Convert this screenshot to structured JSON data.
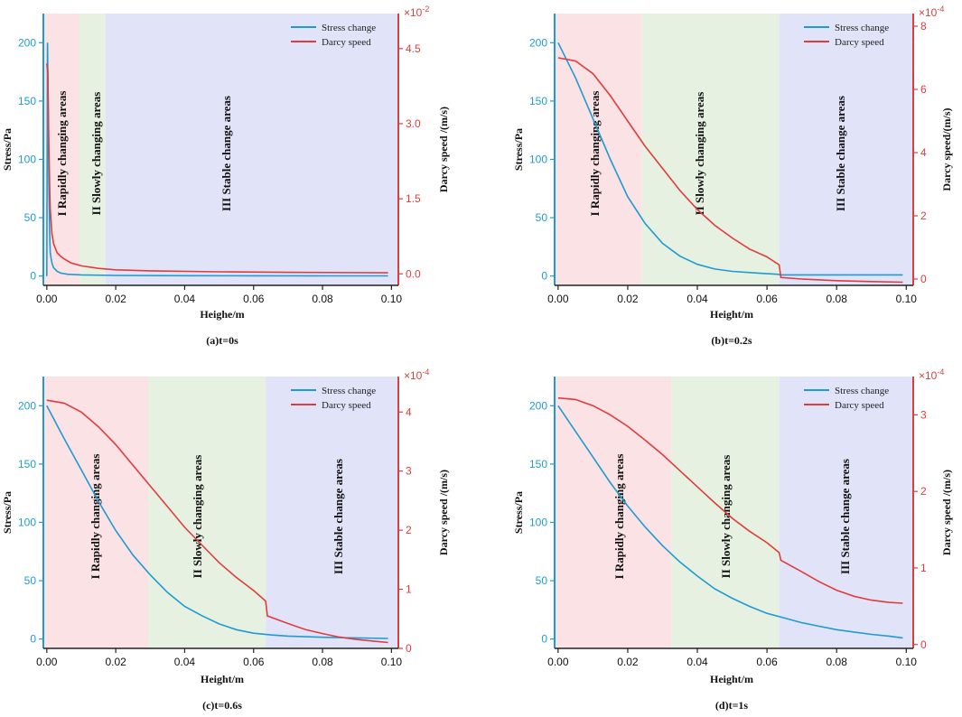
{
  "colors": {
    "stress": "#1f9bd1",
    "darcy": "#e03c3c",
    "region1": "#fbe2e4",
    "region2": "#e6f1e2",
    "region3": "#e1e4f8",
    "axis": "#222222"
  },
  "shared": {
    "xlabel_a": "Heighe/m",
    "xlabel": "Height/m",
    "ylabel_left": "Stress/Pa",
    "ylabel_right_a": "Darcy speed /(m/s)",
    "ylabel_right_b": "Darcy speed/(m/s)",
    "ylabel_right_cd": "Darcy speed /(m/s)",
    "legend_stress": "Stress change",
    "legend_darcy": "Darcy speed",
    "region1_label": "I  Rapidly changing areas",
    "region2_label_a": "II  Slowly changing areas",
    "region2_label": "II Slowly changing areas",
    "region3_label": "III Stable change areas"
  },
  "chart_data": [
    {
      "type": "line",
      "title": "(a)t=0s",
      "xlabel": "Heighe/m",
      "ylabel": "Stress/Pa",
      "ylabel_right": "Darcy speed /(m/s)",
      "xlim": [
        -0.001,
        0.102
      ],
      "xticks": [
        "0.00",
        "0.02",
        "0.04",
        "0.06",
        "0.08",
        "0.10"
      ],
      "xtick_values": [
        0,
        0.02,
        0.04,
        0.06,
        0.08,
        0.1
      ],
      "ylim_left": [
        -8,
        225
      ],
      "yticks_left": [
        "0",
        "50",
        "100",
        "150",
        "200"
      ],
      "ytick_left_values": [
        0,
        50,
        100,
        150,
        200
      ],
      "ylim_right": [
        -0.23,
        5.2
      ],
      "yticks_right": [
        "0.0",
        "1.5",
        "3.0",
        "4.5"
      ],
      "ytick_right_values": [
        0,
        1.5,
        3.0,
        4.5
      ],
      "right_multiplier": "×10",
      "right_exponent": "-2",
      "regions": [
        {
          "label": "I  Rapidly changing areas",
          "x0": -0.001,
          "x1": 0.0095
        },
        {
          "label": "II  Slowly changing areas",
          "x0": 0.0095,
          "x1": 0.017
        },
        {
          "label": "III Stable change areas",
          "x0": 0.017,
          "x1": 0.102
        }
      ],
      "series": [
        {
          "name": "Stress change",
          "axis": "left",
          "x": [
            0,
            0.0002,
            0.0004,
            0.0006,
            0.0008,
            0.001,
            0.0013,
            0.0016,
            0.002,
            0.003,
            0.004,
            0.006,
            0.01,
            0.02,
            0.04,
            0.06,
            0.08,
            0.099
          ],
          "y": [
            0,
            200,
            150,
            80,
            40,
            20,
            14,
            10,
            7,
            4,
            2.5,
            1.5,
            1,
            0.5,
            0.3,
            0.2,
            0.1,
            0.1
          ]
        },
        {
          "name": "Darcy speed",
          "axis": "right",
          "x": [
            0,
            0.0003,
            0.0005,
            0.0008,
            0.001,
            0.0015,
            0.002,
            0.003,
            0.004,
            0.005,
            0.007,
            0.01,
            0.015,
            0.02,
            0.03,
            0.05,
            0.07,
            0.099
          ],
          "y": [
            4.2,
            4.0,
            3.0,
            1.8,
            1.3,
            0.8,
            0.6,
            0.42,
            0.35,
            0.3,
            0.22,
            0.16,
            0.11,
            0.08,
            0.06,
            0.04,
            0.03,
            0.02
          ]
        }
      ]
    },
    {
      "type": "line",
      "title": "(b)t=0.2s",
      "xlabel": "Height/m",
      "ylabel": "Stress/Pa",
      "ylabel_right": "Darcy speed/(m/s)",
      "xlim": [
        -0.001,
        0.102
      ],
      "xticks": [
        "0.00",
        "0.02",
        "0.04",
        "0.06",
        "0.08",
        "0.10"
      ],
      "xtick_values": [
        0,
        0.02,
        0.04,
        0.06,
        0.08,
        0.1
      ],
      "ylim_left": [
        -8,
        225
      ],
      "yticks_left": [
        "0",
        "50",
        "100",
        "150",
        "200"
      ],
      "ytick_left_values": [
        0,
        50,
        100,
        150,
        200
      ],
      "ylim_right": [
        -0.2,
        8.4
      ],
      "yticks_right": [
        "0",
        "2",
        "4",
        "6",
        "8"
      ],
      "ytick_right_values": [
        0,
        2,
        4,
        6,
        8
      ],
      "right_multiplier": "×10",
      "right_exponent": "-4",
      "regions": [
        {
          "label": "I  Rapidly changing areas",
          "x0": -0.001,
          "x1": 0.024
        },
        {
          "label": "II Slowly changing areas",
          "x0": 0.024,
          "x1": 0.0635
        },
        {
          "label": "III Stable change areas",
          "x0": 0.0635,
          "x1": 0.102
        }
      ],
      "series": [
        {
          "name": "Stress change",
          "axis": "left",
          "x": [
            0,
            0.005,
            0.01,
            0.015,
            0.02,
            0.025,
            0.03,
            0.035,
            0.04,
            0.045,
            0.05,
            0.055,
            0.06,
            0.063,
            0.064,
            0.07,
            0.08,
            0.09,
            0.099
          ],
          "y": [
            200,
            170,
            135,
            100,
            68,
            45,
            28,
            17,
            10,
            6,
            4,
            3,
            2,
            1.5,
            1,
            1,
            1,
            1,
            1
          ]
        },
        {
          "name": "Darcy speed",
          "axis": "right",
          "x": [
            0,
            0.005,
            0.01,
            0.015,
            0.02,
            0.025,
            0.03,
            0.035,
            0.04,
            0.045,
            0.05,
            0.055,
            0.06,
            0.0635,
            0.064,
            0.07,
            0.08,
            0.09,
            0.099
          ],
          "y": [
            7.0,
            6.9,
            6.5,
            5.8,
            5.0,
            4.2,
            3.5,
            2.8,
            2.2,
            1.7,
            1.3,
            0.95,
            0.7,
            0.45,
            0.05,
            0.0,
            -0.05,
            -0.08,
            -0.1
          ]
        }
      ]
    },
    {
      "type": "line",
      "title": "(c)t=0.6s",
      "xlabel": "Height/m",
      "ylabel": "Stress/Pa",
      "ylabel_right": "Darcy speed /(m/s)",
      "xlim": [
        -0.001,
        0.102
      ],
      "xticks": [
        "0.00",
        "0.02",
        "0.04",
        "0.06",
        "0.08",
        "0.10"
      ],
      "xtick_values": [
        0,
        0.02,
        0.04,
        0.06,
        0.08,
        0.1
      ],
      "ylim_left": [
        -8,
        225
      ],
      "yticks_left": [
        "0",
        "50",
        "100",
        "150",
        "200"
      ],
      "ytick_left_values": [
        0,
        50,
        100,
        150,
        200
      ],
      "ylim_right": [
        0.0,
        4.6
      ],
      "yticks_right": [
        "0",
        "1",
        "2",
        "3",
        "4"
      ],
      "ytick_right_values": [
        0,
        1,
        2,
        3,
        4
      ],
      "right_multiplier": "×10",
      "right_exponent": "-4",
      "regions": [
        {
          "label": "I  Rapidly changing areas",
          "x0": -0.001,
          "x1": 0.0295
        },
        {
          "label": "II Slowly changing areas",
          "x0": 0.0295,
          "x1": 0.0635
        },
        {
          "label": "III Stable change areas",
          "x0": 0.0635,
          "x1": 0.102
        }
      ],
      "series": [
        {
          "name": "Stress change",
          "axis": "left",
          "x": [
            0,
            0.005,
            0.01,
            0.015,
            0.02,
            0.025,
            0.03,
            0.035,
            0.04,
            0.045,
            0.05,
            0.055,
            0.06,
            0.065,
            0.07,
            0.08,
            0.09,
            0.099
          ],
          "y": [
            200,
            172,
            145,
            118,
            93,
            72,
            55,
            40,
            28,
            20,
            13,
            8,
            5,
            3.5,
            2.5,
            1.5,
            1,
            0.5
          ]
        },
        {
          "name": "Darcy speed",
          "axis": "right",
          "x": [
            0,
            0.005,
            0.01,
            0.015,
            0.02,
            0.025,
            0.03,
            0.035,
            0.04,
            0.045,
            0.05,
            0.055,
            0.06,
            0.0635,
            0.064,
            0.07,
            0.075,
            0.08,
            0.085,
            0.09,
            0.095,
            0.099
          ],
          "y": [
            4.2,
            4.15,
            4.0,
            3.75,
            3.45,
            3.1,
            2.75,
            2.4,
            2.05,
            1.75,
            1.45,
            1.2,
            0.98,
            0.8,
            0.55,
            0.42,
            0.32,
            0.25,
            0.19,
            0.15,
            0.12,
            0.1
          ]
        }
      ]
    },
    {
      "type": "line",
      "title": "(d)t=1s",
      "xlabel": "Height/m",
      "ylabel": "Stress/Pa",
      "ylabel_right": "Darcy speed /(m/s)",
      "xlim": [
        -0.001,
        0.102
      ],
      "xticks": [
        "0.00",
        "0.02",
        "0.04",
        "0.06",
        "0.08",
        "0.10"
      ],
      "xtick_values": [
        0,
        0.02,
        0.04,
        0.06,
        0.08,
        0.1
      ],
      "ylim_left": [
        -8,
        225
      ],
      "yticks_left": [
        "0",
        "50",
        "100",
        "150",
        "200"
      ],
      "ytick_left_values": [
        0,
        50,
        100,
        150,
        200
      ],
      "ylim_right": [
        -0.05,
        3.5
      ],
      "yticks_right": [
        "0",
        "1",
        "2",
        "3"
      ],
      "ytick_right_values": [
        0,
        1,
        2,
        3
      ],
      "right_multiplier": "×10",
      "right_exponent": "-4",
      "regions": [
        {
          "label": "I  Rapidly changing areas",
          "x0": -0.001,
          "x1": 0.0325
        },
        {
          "label": "II Slowly changing areas",
          "x0": 0.0325,
          "x1": 0.0635
        },
        {
          "label": "III Stable change areas",
          "x0": 0.0635,
          "x1": 0.102
        }
      ],
      "series": [
        {
          "name": "Stress change",
          "axis": "left",
          "x": [
            0,
            0.005,
            0.01,
            0.015,
            0.02,
            0.025,
            0.03,
            0.035,
            0.04,
            0.045,
            0.05,
            0.055,
            0.06,
            0.065,
            0.07,
            0.075,
            0.08,
            0.085,
            0.09,
            0.095,
            0.099
          ],
          "y": [
            200,
            178,
            156,
            134,
            114,
            96,
            80,
            66,
            54,
            43,
            35,
            28,
            22,
            18,
            14,
            11,
            8,
            6,
            4,
            2.5,
            1
          ]
        },
        {
          "name": "Darcy speed",
          "axis": "right",
          "x": [
            0,
            0.005,
            0.01,
            0.015,
            0.02,
            0.025,
            0.03,
            0.035,
            0.04,
            0.045,
            0.05,
            0.055,
            0.06,
            0.0635,
            0.064,
            0.07,
            0.075,
            0.08,
            0.085,
            0.09,
            0.095,
            0.099
          ],
          "y": [
            3.22,
            3.2,
            3.12,
            3.0,
            2.85,
            2.67,
            2.48,
            2.27,
            2.06,
            1.85,
            1.65,
            1.48,
            1.33,
            1.2,
            1.1,
            0.95,
            0.82,
            0.71,
            0.63,
            0.58,
            0.55,
            0.54
          ]
        }
      ]
    }
  ]
}
